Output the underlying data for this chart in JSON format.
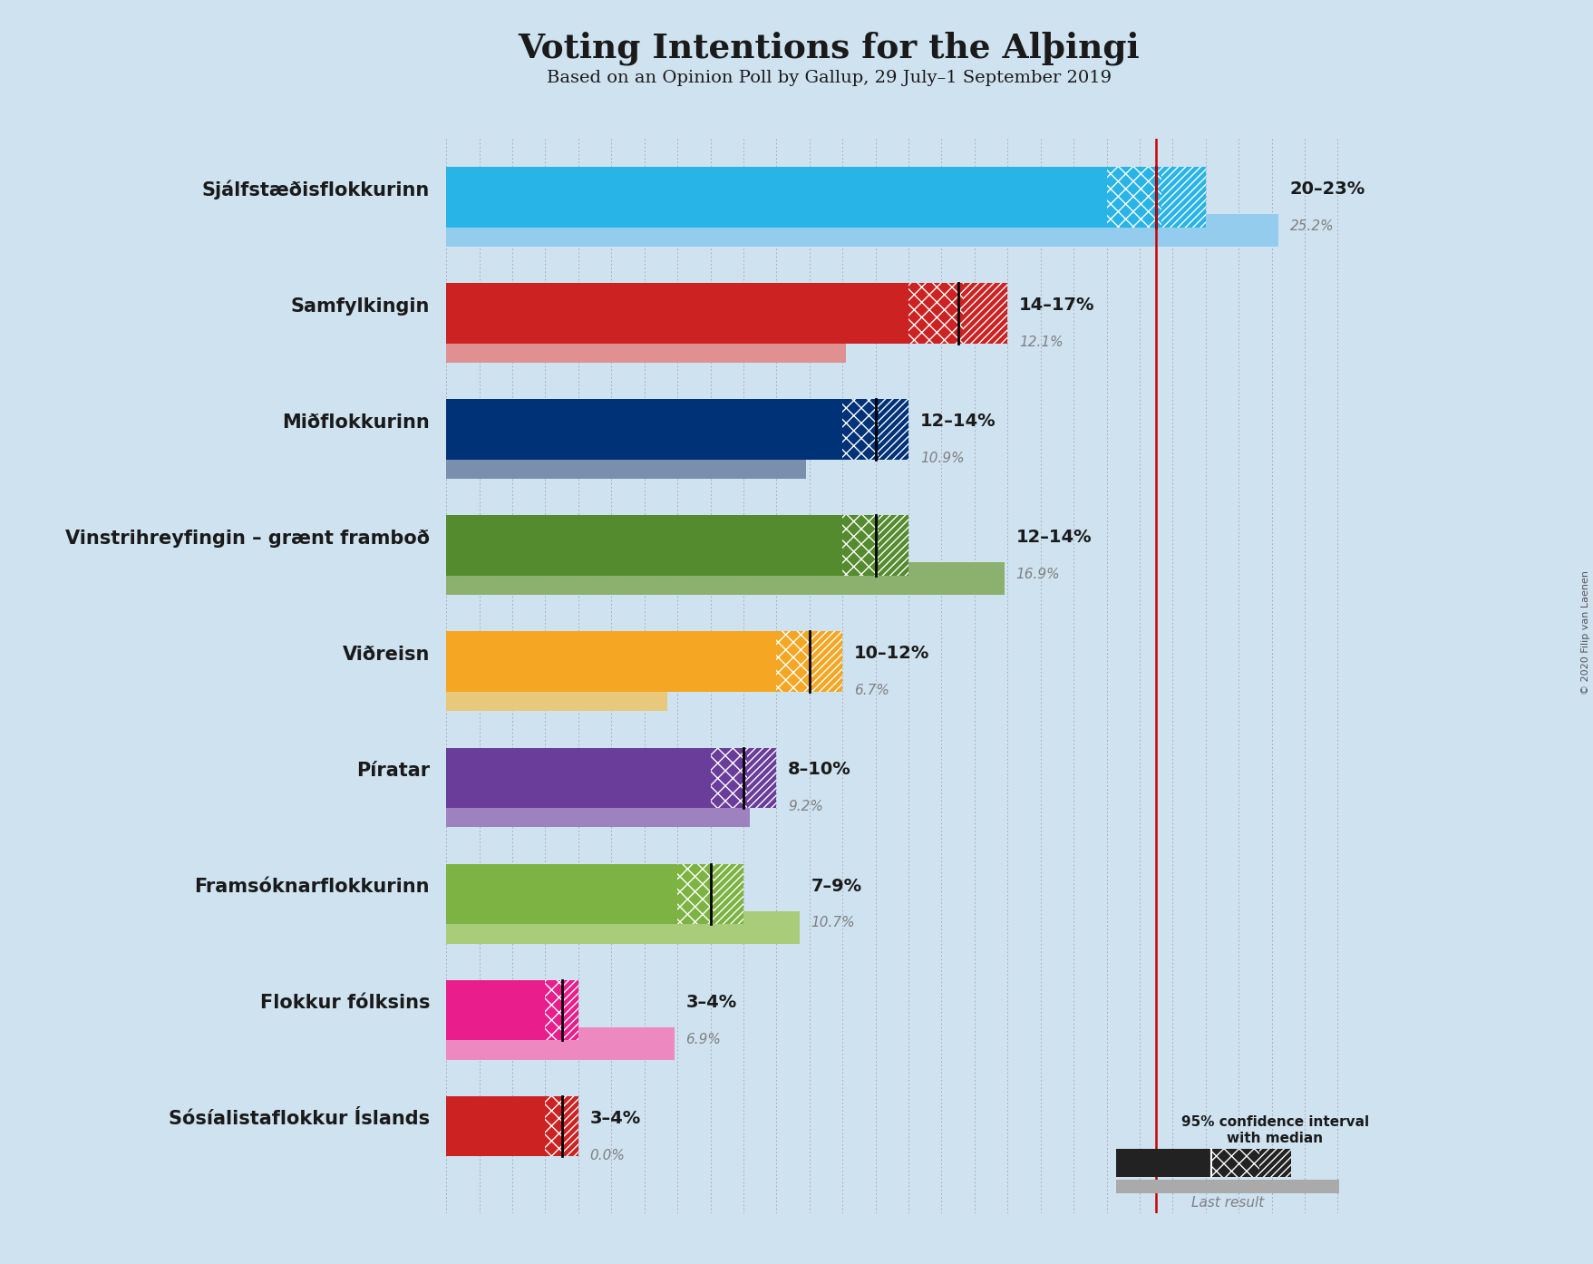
{
  "title": "Voting Intentions for the Alþingi",
  "subtitle": "Based on an Opinion Poll by Gallup, 29 July–1 September 2019",
  "copyright": "© 2020 Filip van Laenen",
  "background_color": "#cfe2f0",
  "parties": [
    "Sjálfstæðisflokkurinn",
    "Samfylkingin",
    "Miðflokkurinn",
    "Vinstrihreyfingin – grænt framboð",
    "Viðreisn",
    "Píratar",
    "Framsóknarflokkurinn",
    "Flokkur fólksins",
    "Sósíalistaflokkur Íslands"
  ],
  "ci_low": [
    20,
    14,
    12,
    12,
    10,
    8,
    7,
    3,
    3
  ],
  "ci_high": [
    23,
    17,
    14,
    14,
    12,
    10,
    9,
    4,
    4
  ],
  "median": [
    21.5,
    15.5,
    13.0,
    13.0,
    11.0,
    9.0,
    8.0,
    3.5,
    3.5
  ],
  "last_result": [
    25.2,
    12.1,
    10.9,
    16.9,
    6.7,
    9.2,
    10.7,
    6.9,
    0.0
  ],
  "bar_colors": [
    "#29b4e8",
    "#cc2222",
    "#003278",
    "#558b2f",
    "#f5a623",
    "#6a3d9a",
    "#7cb342",
    "#e91e8c",
    "#cc2222"
  ],
  "last_result_colors": [
    "#93ccec",
    "#e09090",
    "#7a8fae",
    "#8cb06e",
    "#e8c87a",
    "#9e82bf",
    "#a8cc7a",
    "#ee88c0",
    "#e09090"
  ],
  "label_range": [
    "20–23%",
    "14–17%",
    "12–14%",
    "12–14%",
    "10–12%",
    "8–10%",
    "7–9%",
    "3–4%",
    "3–4%"
  ],
  "axis_max": 28,
  "red_line_x": 21.5,
  "median_line_color": "#cc0000",
  "dotted_line_color": "#888888"
}
